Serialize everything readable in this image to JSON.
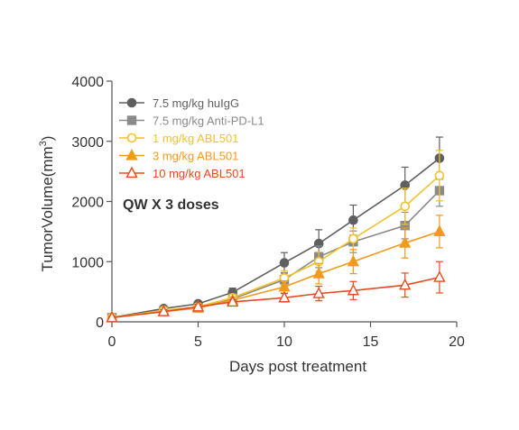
{
  "chart_data": {
    "type": "line",
    "xlabel": "Days post treatment",
    "ylabel_main": "TumorVolume(mm",
    "ylabel_exp": "3",
    "ylabel_close": ")",
    "xlim": [
      0,
      20
    ],
    "ylim": [
      0,
      4000
    ],
    "x_ticks": [
      "0",
      "5",
      "10",
      "15",
      "20"
    ],
    "y_ticks": [
      "0",
      "1000",
      "2000",
      "3000",
      "4000"
    ],
    "grid": false,
    "legend_position": "top-left",
    "annotation": "QW X 3 doses",
    "series": [
      {
        "name": "7.5 mg/kg huIgG",
        "color": "#5f5f5f",
        "marker": "circle-filled",
        "points": [
          {
            "x": 0,
            "y": 70,
            "err": 20
          },
          {
            "x": 3,
            "y": 220,
            "err": 30
          },
          {
            "x": 5,
            "y": 300,
            "err": 40
          },
          {
            "x": 7,
            "y": 490,
            "err": 70
          },
          {
            "x": 10,
            "y": 980,
            "err": 170
          },
          {
            "x": 12,
            "y": 1300,
            "err": 230
          },
          {
            "x": 14,
            "y": 1690,
            "err": 250
          },
          {
            "x": 17,
            "y": 2270,
            "err": 300
          },
          {
            "x": 19,
            "y": 2720,
            "err": 350
          }
        ]
      },
      {
        "name": "7.5 mg/kg Anti-PD-L1",
        "color": "#8a8a8a",
        "marker": "square-filled",
        "points": [
          {
            "x": 0,
            "y": 70,
            "err": 20
          },
          {
            "x": 3,
            "y": 180,
            "err": 30
          },
          {
            "x": 5,
            "y": 230,
            "err": 40
          },
          {
            "x": 7,
            "y": 380,
            "err": 60
          },
          {
            "x": 10,
            "y": 700,
            "err": 120
          },
          {
            "x": 12,
            "y": 1080,
            "err": 180
          },
          {
            "x": 14,
            "y": 1330,
            "err": 180
          },
          {
            "x": 17,
            "y": 1600,
            "err": 220
          },
          {
            "x": 19,
            "y": 2180,
            "err": 260
          }
        ]
      },
      {
        "name": "1 mg/kg ABL501",
        "color": "#f2c230",
        "marker": "circle-open",
        "points": [
          {
            "x": 0,
            "y": 70,
            "err": 20
          },
          {
            "x": 3,
            "y": 190,
            "err": 30
          },
          {
            "x": 5,
            "y": 250,
            "err": 40
          },
          {
            "x": 7,
            "y": 400,
            "err": 60
          },
          {
            "x": 10,
            "y": 730,
            "err": 120
          },
          {
            "x": 12,
            "y": 1000,
            "err": 160
          },
          {
            "x": 14,
            "y": 1380,
            "err": 180
          },
          {
            "x": 17,
            "y": 1920,
            "err": 300
          },
          {
            "x": 19,
            "y": 2430,
            "err": 420
          }
        ]
      },
      {
        "name": "3 mg/kg ABL501",
        "color": "#f29a1d",
        "marker": "triangle-filled",
        "points": [
          {
            "x": 0,
            "y": 70,
            "err": 20
          },
          {
            "x": 3,
            "y": 170,
            "err": 30
          },
          {
            "x": 5,
            "y": 230,
            "err": 40
          },
          {
            "x": 7,
            "y": 360,
            "err": 50
          },
          {
            "x": 10,
            "y": 580,
            "err": 100
          },
          {
            "x": 12,
            "y": 800,
            "err": 170
          },
          {
            "x": 14,
            "y": 1000,
            "err": 200
          },
          {
            "x": 17,
            "y": 1310,
            "err": 250
          },
          {
            "x": 19,
            "y": 1500,
            "err": 270
          }
        ]
      },
      {
        "name": "10 mg/kg ABL501",
        "color": "#e84a1e",
        "marker": "triangle-open",
        "points": [
          {
            "x": 0,
            "y": 70,
            "err": 20
          },
          {
            "x": 3,
            "y": 170,
            "err": 30
          },
          {
            "x": 5,
            "y": 250,
            "err": 40
          },
          {
            "x": 7,
            "y": 330,
            "err": 40
          },
          {
            "x": 10,
            "y": 400,
            "err": 70
          },
          {
            "x": 12,
            "y": 470,
            "err": 120
          },
          {
            "x": 14,
            "y": 520,
            "err": 150
          },
          {
            "x": 17,
            "y": 610,
            "err": 200
          },
          {
            "x": 19,
            "y": 740,
            "err": 260
          }
        ]
      }
    ]
  }
}
